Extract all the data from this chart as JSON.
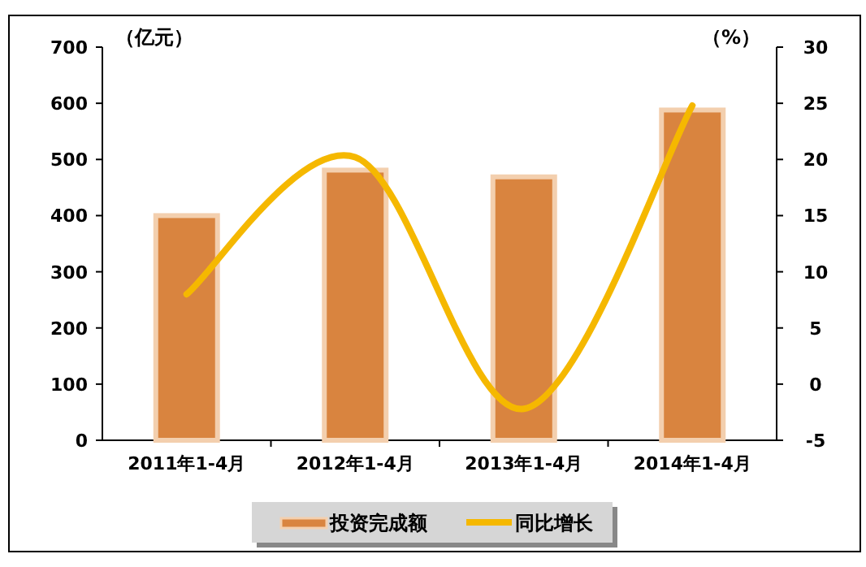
{
  "chart_data": {
    "type": "bar",
    "categories": [
      "2011年1-4月",
      "2012年1-4月",
      "2013年1-4月",
      "2014年1-4月"
    ],
    "ylabel": "（亿元）",
    "y2label": "（%）",
    "series": [
      {
        "name": "投资完成额",
        "color": "#d9843f",
        "values": [
          400,
          481,
          469,
          588
        ]
      },
      {
        "name": "同比增长",
        "type": "line",
        "axis": "y2",
        "color": "#f5b800",
        "values": [
          8.0,
          20.2,
          -2.2,
          24.8
        ]
      }
    ],
    "ylim": [
      0,
      700
    ],
    "yticks": [
      0,
      100,
      200,
      300,
      400,
      500,
      600,
      700
    ],
    "y2lim": [
      -5,
      30
    ],
    "y2ticks": [
      -5,
      0,
      5,
      10,
      15,
      20,
      25,
      30
    ],
    "legend": "bottom"
  }
}
